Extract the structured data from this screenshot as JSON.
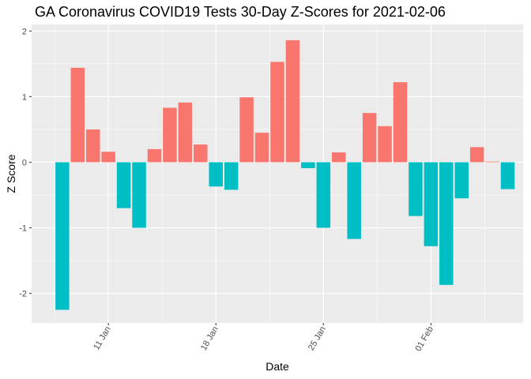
{
  "chart_data": {
    "type": "bar",
    "title": "GA Coronavirus COVID19 Tests 30-Day Z-Scores for 2021-02-06",
    "xlabel": "Date",
    "ylabel": "Z Score",
    "x_axis": "date",
    "x_ticks": [
      {
        "label": "11 Jan",
        "date": "2021-01-11"
      },
      {
        "label": "18 Jan",
        "date": "2021-01-18"
      },
      {
        "label": "25 Jan",
        "date": "2021-01-25"
      },
      {
        "label": "01 Feb",
        "date": "2021-02-01"
      }
    ],
    "xlim": [
      "2021-01-06",
      "2021-02-07"
    ],
    "ylim": [
      -2.45,
      2.1
    ],
    "y_ticks": [
      -2,
      -1,
      0,
      1,
      2
    ],
    "grid": true,
    "legend": "none",
    "colors": {
      "positive": "#F8766D",
      "negative": "#00BFC4",
      "panel": "#EBEBEB",
      "grid": "#FFFFFF"
    },
    "dates": [
      "2021-01-08",
      "2021-01-09",
      "2021-01-10",
      "2021-01-11",
      "2021-01-12",
      "2021-01-13",
      "2021-01-14",
      "2021-01-15",
      "2021-01-16",
      "2021-01-17",
      "2021-01-18",
      "2021-01-19",
      "2021-01-20",
      "2021-01-21",
      "2021-01-22",
      "2021-01-23",
      "2021-01-24",
      "2021-01-25",
      "2021-01-26",
      "2021-01-27",
      "2021-01-28",
      "2021-01-29",
      "2021-01-30",
      "2021-01-31",
      "2021-02-01",
      "2021-02-02",
      "2021-02-03",
      "2021-02-04",
      "2021-02-05",
      "2021-02-06"
    ],
    "values": [
      -2.25,
      1.44,
      0.5,
      0.16,
      -0.7,
      -1.0,
      0.2,
      0.83,
      0.91,
      0.27,
      -0.37,
      -0.42,
      0.99,
      0.45,
      1.53,
      1.86,
      -0.09,
      -1.0,
      0.15,
      -1.17,
      0.75,
      0.55,
      1.22,
      -0.82,
      -1.28,
      -1.87,
      -0.55,
      0.23,
      0.01,
      -0.41
    ]
  }
}
